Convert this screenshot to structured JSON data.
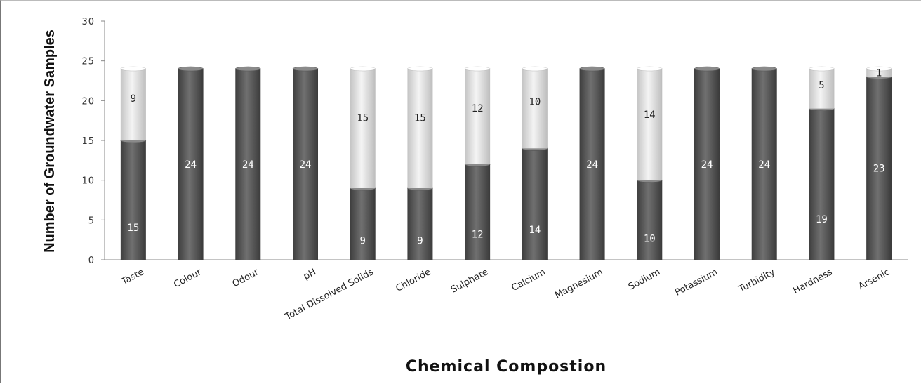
{
  "chart_data": {
    "type": "bar",
    "stacked": true,
    "title": "",
    "xlabel": "Chemical Compostion",
    "ylabel": "Number of Groundwater Samples",
    "ylim": [
      0,
      30
    ],
    "yticks": [
      0,
      5,
      10,
      15,
      20,
      25,
      30
    ],
    "grid": false,
    "legend": "none",
    "categories": [
      "Taste",
      "Colour",
      "Odour",
      "pH",
      "Total Dissolved Solids",
      "Chloride",
      "Sulphate",
      "Calcium",
      "Magnesium",
      "Sodium",
      "Potassium",
      "Turbidity",
      "Hardness",
      "Arsenic"
    ],
    "series": [
      {
        "color": "#5a5a5a",
        "values": [
          15,
          24,
          24,
          24,
          9,
          9,
          12,
          14,
          24,
          10,
          24,
          24,
          19,
          23
        ]
      },
      {
        "color": "#e4e4e4",
        "values": [
          9,
          0,
          0,
          0,
          15,
          15,
          12,
          10,
          0,
          14,
          0,
          0,
          5,
          1
        ]
      }
    ]
  }
}
